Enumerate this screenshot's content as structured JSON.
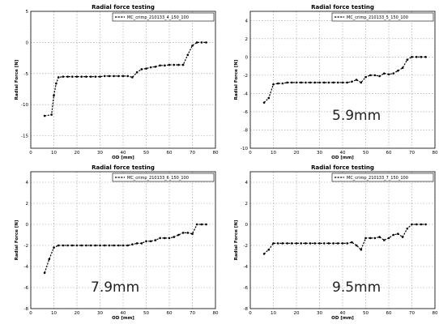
{
  "chart_data": [
    {
      "type": "line",
      "title": "Radial force testing",
      "xlabel": "OD [mm]",
      "ylabel": "Radial Force [N]",
      "xlim": [
        0,
        80
      ],
      "ylim": [
        -17,
        5
      ],
      "xticks": [
        0,
        10,
        20,
        30,
        40,
        50,
        60,
        70,
        80
      ],
      "yticks": [
        -15,
        -10,
        -5,
        0,
        5
      ],
      "grid": true,
      "legend_position": "top-right",
      "annotation": "",
      "series": [
        {
          "name": "MC_crimp_210133_4_150_100",
          "x": [
            6,
            9,
            10,
            11,
            12,
            14,
            16,
            18,
            20,
            22,
            24,
            26,
            28,
            30,
            32,
            34,
            36,
            38,
            40,
            42,
            44,
            46,
            48,
            50,
            52,
            54,
            56,
            58,
            60,
            62,
            64,
            66,
            68,
            70,
            72,
            74,
            76
          ],
          "values": [
            -11.8,
            -11.6,
            -8.5,
            -6.6,
            -5.6,
            -5.5,
            -5.5,
            -5.5,
            -5.5,
            -5.5,
            -5.5,
            -5.5,
            -5.5,
            -5.5,
            -5.4,
            -5.4,
            -5.4,
            -5.4,
            -5.4,
            -5.4,
            -5.6,
            -4.8,
            -4.3,
            -4.2,
            -4.0,
            -3.9,
            -3.7,
            -3.7,
            -3.6,
            -3.6,
            -3.6,
            -3.6,
            -2.0,
            -0.5,
            0.0,
            0.0,
            0.0
          ]
        }
      ]
    },
    {
      "type": "line",
      "title": "Radial force testing",
      "xlabel": "OD [mm]",
      "ylabel": "Radial Force [N]",
      "xlim": [
        0,
        80
      ],
      "ylim": [
        -10,
        5
      ],
      "xticks": [
        0,
        10,
        20,
        30,
        40,
        50,
        60,
        70,
        80
      ],
      "yticks": [
        -10,
        -8,
        -6,
        -4,
        -2,
        0,
        2,
        4
      ],
      "grid": true,
      "legend_position": "top-right",
      "annotation": "5.9mm",
      "series": [
        {
          "name": "MC_crimp_210133_5_150_100",
          "x": [
            6,
            8,
            10,
            12,
            14,
            16,
            18,
            20,
            22,
            24,
            26,
            28,
            30,
            32,
            34,
            36,
            38,
            40,
            42,
            44,
            46,
            48,
            50,
            52,
            54,
            56,
            58,
            60,
            62,
            64,
            66,
            68,
            70,
            72,
            74,
            76
          ],
          "values": [
            -5.0,
            -4.5,
            -3.0,
            -2.9,
            -2.9,
            -2.8,
            -2.8,
            -2.8,
            -2.8,
            -2.8,
            -2.8,
            -2.8,
            -2.8,
            -2.8,
            -2.8,
            -2.8,
            -2.8,
            -2.8,
            -2.8,
            -2.7,
            -2.5,
            -2.8,
            -2.2,
            -2.0,
            -2.0,
            -2.1,
            -1.8,
            -1.9,
            -1.8,
            -1.5,
            -1.2,
            -0.3,
            0.0,
            0.0,
            0.0,
            0.0
          ]
        }
      ]
    },
    {
      "type": "line",
      "title": "Radial force testing",
      "xlabel": "OD [mm]",
      "ylabel": "Radial Force [N]",
      "xlim": [
        0,
        80
      ],
      "ylim": [
        -8,
        5
      ],
      "xticks": [
        0,
        10,
        20,
        30,
        40,
        50,
        60,
        70,
        80
      ],
      "yticks": [
        -8,
        -6,
        -4,
        -2,
        0,
        2,
        4
      ],
      "grid": true,
      "legend_position": "top-right",
      "annotation": "7.9mm",
      "series": [
        {
          "name": "MC_crimp_210133_6_150_100",
          "x": [
            6,
            8,
            10,
            12,
            14,
            16,
            18,
            20,
            22,
            24,
            26,
            28,
            30,
            32,
            34,
            36,
            38,
            40,
            42,
            44,
            46,
            48,
            50,
            52,
            54,
            56,
            58,
            60,
            62,
            64,
            66,
            68,
            70,
            72,
            74,
            76
          ],
          "values": [
            -4.6,
            -3.3,
            -2.2,
            -2.0,
            -2.0,
            -2.0,
            -2.0,
            -2.0,
            -2.0,
            -2.0,
            -2.0,
            -2.0,
            -2.0,
            -2.0,
            -2.0,
            -2.0,
            -2.0,
            -2.0,
            -2.0,
            -1.9,
            -1.8,
            -1.8,
            -1.6,
            -1.6,
            -1.5,
            -1.3,
            -1.3,
            -1.3,
            -1.2,
            -1.0,
            -0.8,
            -0.8,
            -0.9,
            0.0,
            0.0,
            0.0
          ]
        }
      ]
    },
    {
      "type": "line",
      "title": "Radial force testing",
      "xlabel": "OD [mm]",
      "ylabel": "Radial Force [N]",
      "xlim": [
        0,
        80
      ],
      "ylim": [
        -8,
        5
      ],
      "xticks": [
        0,
        10,
        20,
        30,
        40,
        50,
        60,
        70,
        80
      ],
      "yticks": [
        -8,
        -6,
        -4,
        -2,
        0,
        2,
        4
      ],
      "grid": true,
      "legend_position": "top-right",
      "annotation": "9.5mm",
      "series": [
        {
          "name": "MC_crimp_210133_7_150_100",
          "x": [
            6,
            8,
            10,
            12,
            14,
            16,
            18,
            20,
            22,
            24,
            26,
            28,
            30,
            32,
            34,
            36,
            38,
            40,
            42,
            44,
            46,
            48,
            50,
            52,
            54,
            56,
            58,
            60,
            62,
            64,
            66,
            68,
            70,
            72,
            74,
            76
          ],
          "values": [
            -2.8,
            -2.4,
            -1.8,
            -1.8,
            -1.8,
            -1.8,
            -1.8,
            -1.8,
            -1.8,
            -1.8,
            -1.8,
            -1.8,
            -1.8,
            -1.8,
            -1.8,
            -1.8,
            -1.8,
            -1.8,
            -1.8,
            -1.7,
            -2.0,
            -2.4,
            -1.3,
            -1.3,
            -1.3,
            -1.2,
            -1.5,
            -1.3,
            -1.0,
            -0.9,
            -1.2,
            -0.4,
            0.0,
            0.0,
            0.0,
            0.0
          ]
        }
      ]
    }
  ]
}
